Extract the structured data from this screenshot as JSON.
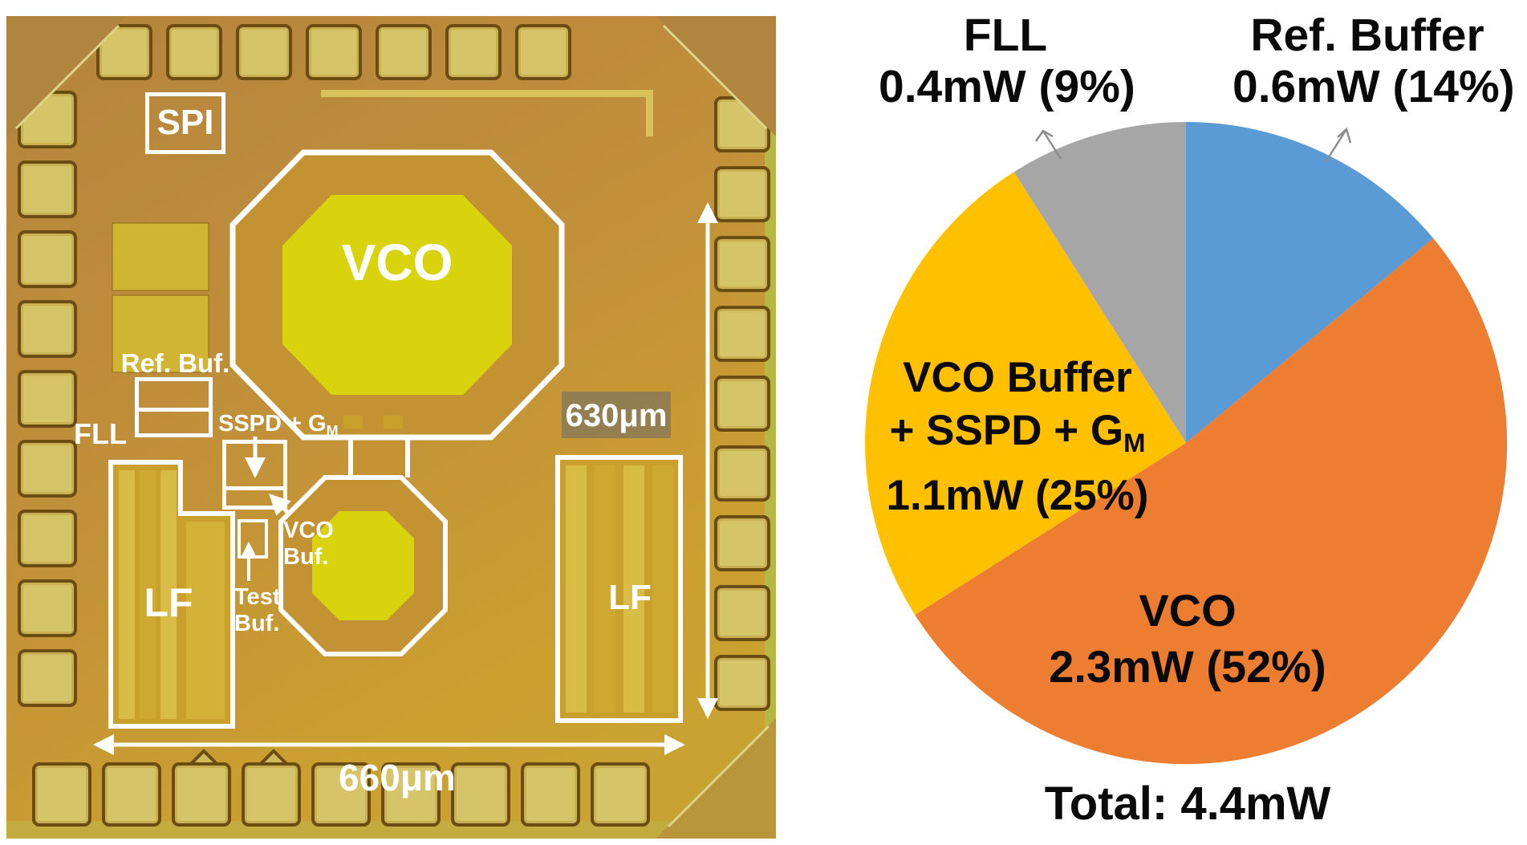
{
  "figure": {
    "die": {
      "spi": "SPI",
      "vco": "VCO",
      "ref_buf": "Ref. Buf.",
      "fll": "FLL",
      "sspd_prefix": "SSPD + G",
      "sspd_sub": "M",
      "vco_buf_line1": "VCO",
      "vco_buf_line2": "Buf.",
      "test_buf_line1": "Test",
      "test_buf_line2": "Buf.",
      "lf_left": "LF",
      "lf_right": "LF",
      "dim_height": "630μm",
      "dim_width": "660μm"
    },
    "pie": {
      "callouts": {
        "fll": {
          "line1": "FLL",
          "line2": "0.4mW (9%)"
        },
        "ref_buffer": {
          "line1": "Ref. Buffer",
          "line2": "0.6mW (14%)"
        },
        "vco_buffer": {
          "line1": "VCO Buffer",
          "line2_prefix": "+ SSPD + G",
          "line2_sub": "M",
          "line3": "1.1mW (25%)"
        },
        "vco": {
          "line1": "VCO",
          "line2": "2.3mW (52%)"
        }
      },
      "total": "Total: 4.4mW"
    }
  },
  "chart_data": {
    "type": "pie",
    "unit": "mW",
    "start_at_top": true,
    "direction": "clockwise",
    "total_label": "Total: 4.4mW",
    "total_value_mw": 4.4,
    "slices": [
      {
        "label": "Ref. Buffer",
        "value_mw": 0.6,
        "percent": 14,
        "color": "#5b9bd5"
      },
      {
        "label": "VCO",
        "value_mw": 2.3,
        "percent": 52,
        "color": "#ed7d31"
      },
      {
        "label": "VCO Buffer + SSPD + GM",
        "value_mw": 1.1,
        "percent": 25,
        "color": "#ffc000"
      },
      {
        "label": "FLL",
        "value_mw": 0.4,
        "percent": 9,
        "color": "#a6a6a6"
      }
    ]
  }
}
